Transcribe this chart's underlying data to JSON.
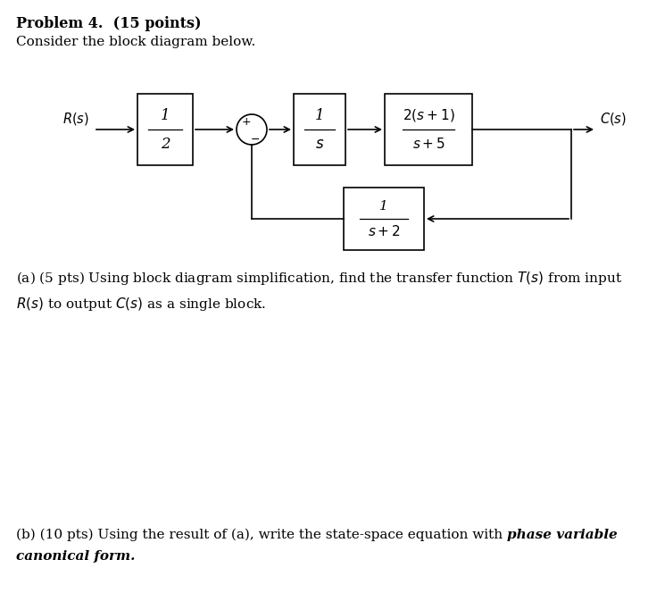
{
  "bg_color": "#ffffff",
  "title_bold": "Problem 4.  (15 points)",
  "title_normal": "Consider the block diagram below.",
  "part_a": "(a) (5 pts) Using block diagram simplification, find the transfer function $T(s)$ from input\n$R(s)$ to output $C(s)$ as a single block.",
  "part_b_normal": "(b) (10 pts) Using the result of (a), write the state-space equation with ",
  "part_b_bold_italic_1": "phase variable",
  "part_b_bold_italic_2": "canonical form",
  "part_b_period": ".",
  "figw": 7.45,
  "figh": 6.64,
  "dpi": 100
}
